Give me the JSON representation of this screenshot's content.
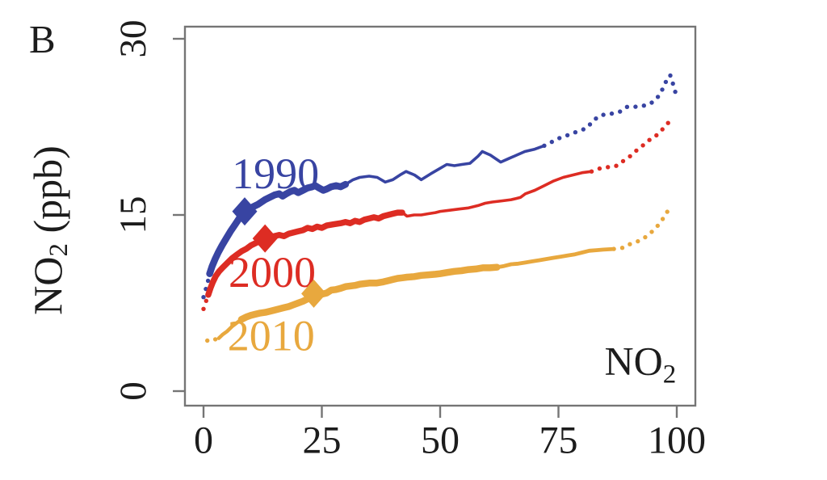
{
  "page": {
    "panel_label": "B",
    "y_axis_title": {
      "main": "NO",
      "sub": "2",
      "suffix": " (ppb)"
    }
  },
  "chart_data": {
    "type": "line",
    "title": "",
    "xlabel": "",
    "ylabel": "NO2 (ppb)",
    "panel_label": "B",
    "xlim": [
      0,
      100
    ],
    "ylim": [
      0,
      30
    ],
    "x_ticks": [
      0,
      25,
      50,
      75,
      100
    ],
    "y_ticks": [
      0,
      15,
      30
    ],
    "grid": false,
    "legend_position": "inline-labels",
    "colors": {
      "axis": "#757575",
      "text": "#1c1c1c"
    },
    "corner_label": {
      "main": "NO",
      "sub": "2",
      "pos": {
        "p": 92.3,
        "v": 2.3
      }
    },
    "series": [
      {
        "name": "1990",
        "color": "#3844a2",
        "label_pos": {
          "p": 15.2,
          "v": 18.6
        },
        "marker": {
          "p": 8.7,
          "v": 15.3
        },
        "segments": [
          {
            "from": 0,
            "to": 1.3,
            "style": "dots"
          },
          {
            "from": 1.3,
            "to": 30,
            "style": "line",
            "width": 8.5
          },
          {
            "from": 30,
            "to": 72,
            "style": "line",
            "width": 3.6
          },
          {
            "from": 72,
            "to": 100,
            "style": "dots"
          }
        ],
        "points": [
          [
            0,
            8.0
          ],
          [
            0.5,
            8.7
          ],
          [
            0.9,
            9.3
          ],
          [
            1.3,
            10.0
          ],
          [
            1.8,
            10.6
          ],
          [
            2.4,
            11.2
          ],
          [
            3.1,
            11.8
          ],
          [
            3.9,
            12.4
          ],
          [
            4.8,
            13.0
          ],
          [
            5.7,
            13.6
          ],
          [
            6.7,
            14.2
          ],
          [
            7.7,
            14.8
          ],
          [
            8.7,
            15.3
          ],
          [
            9.5,
            15.5
          ],
          [
            10.5,
            15.7
          ],
          [
            11.5,
            15.9
          ],
          [
            13,
            16.3
          ],
          [
            14,
            16.5
          ],
          [
            15,
            16.7
          ],
          [
            16,
            16.8
          ],
          [
            16.7,
            16.6
          ],
          [
            17.5,
            16.8
          ],
          [
            18.4,
            17.0
          ],
          [
            19.2,
            17.1
          ],
          [
            20,
            16.9
          ],
          [
            21,
            17.1
          ],
          [
            22,
            17.3
          ],
          [
            23,
            17.4
          ],
          [
            23.6,
            17.5
          ],
          [
            24.4,
            17.3
          ],
          [
            25.3,
            17.1
          ],
          [
            26,
            17.2
          ],
          [
            27,
            17.4
          ],
          [
            28,
            17.5
          ],
          [
            29,
            17.4
          ],
          [
            30,
            17.6
          ],
          [
            31.6,
            18.0
          ],
          [
            33,
            18.2
          ],
          [
            35,
            18.3
          ],
          [
            36.7,
            18.2
          ],
          [
            38.4,
            17.8
          ],
          [
            40,
            18.0
          ],
          [
            41.5,
            18.4
          ],
          [
            42.8,
            18.7
          ],
          [
            44.6,
            18.4
          ],
          [
            46,
            18.0
          ],
          [
            48,
            18.5
          ],
          [
            49.7,
            18.9
          ],
          [
            51.4,
            19.3
          ],
          [
            53,
            19.2
          ],
          [
            54.6,
            19.3
          ],
          [
            56.3,
            19.4
          ],
          [
            58,
            20.0
          ],
          [
            58.9,
            20.4
          ],
          [
            60.6,
            20.1
          ],
          [
            62.8,
            19.5
          ],
          [
            64.5,
            19.8
          ],
          [
            66.2,
            20.1
          ],
          [
            67.9,
            20.4
          ],
          [
            70,
            20.6
          ],
          [
            72,
            20.9
          ],
          [
            74,
            21.3
          ],
          [
            75.5,
            21.6
          ],
          [
            77,
            21.8
          ],
          [
            79,
            22.1
          ],
          [
            81,
            22.4
          ],
          [
            82.5,
            23.1
          ],
          [
            84,
            23.5
          ],
          [
            86,
            23.6
          ],
          [
            88,
            23.8
          ],
          [
            89.5,
            24.2
          ],
          [
            91,
            24.2
          ],
          [
            93,
            24.3
          ],
          [
            94.5,
            24.5
          ],
          [
            95.5,
            24.8
          ],
          [
            96.5,
            25.3
          ],
          [
            97.3,
            26.0
          ],
          [
            98,
            26.6
          ],
          [
            98.6,
            26.9
          ],
          [
            99.1,
            26.3
          ],
          [
            99.5,
            25.7
          ],
          [
            100,
            25.1
          ]
        ]
      },
      {
        "name": "2000",
        "color": "#dd2c23",
        "label_pos": {
          "p": 14.5,
          "v": 10.2
        },
        "marker": {
          "p": 13,
          "v": 13.0
        },
        "segments": [
          {
            "from": 0,
            "to": 1,
            "style": "dots"
          },
          {
            "from": 1,
            "to": 42,
            "style": "line",
            "width": 7.5
          },
          {
            "from": 42,
            "to": 82,
            "style": "line",
            "width": 3.6
          },
          {
            "from": 82,
            "to": 99,
            "style": "dots"
          }
        ],
        "points": [
          [
            0,
            7.0
          ],
          [
            0.5,
            7.6
          ],
          [
            1,
            8.2
          ],
          [
            1.5,
            8.8
          ],
          [
            2,
            9.3
          ],
          [
            2.6,
            9.8
          ],
          [
            3.3,
            10.2
          ],
          [
            4,
            10.5
          ],
          [
            5,
            10.9
          ],
          [
            6,
            11.3
          ],
          [
            7,
            11.6
          ],
          [
            8,
            11.9
          ],
          [
            9,
            12.1
          ],
          [
            10,
            12.4
          ],
          [
            11,
            12.6
          ],
          [
            12,
            12.8
          ],
          [
            13,
            13.0
          ],
          [
            14,
            13.1
          ],
          [
            15,
            13.2
          ],
          [
            16,
            13.3
          ],
          [
            17,
            13.2
          ],
          [
            18,
            13.4
          ],
          [
            19,
            13.5
          ],
          [
            20,
            13.6
          ],
          [
            21,
            13.7
          ],
          [
            22,
            13.9
          ],
          [
            23,
            13.8
          ],
          [
            24,
            14.0
          ],
          [
            25,
            13.9
          ],
          [
            26,
            14.1
          ],
          [
            27.5,
            14.2
          ],
          [
            29,
            14.3
          ],
          [
            30,
            14.4
          ],
          [
            31,
            14.3
          ],
          [
            32,
            14.5
          ],
          [
            33,
            14.4
          ],
          [
            34,
            14.6
          ],
          [
            35,
            14.7
          ],
          [
            36,
            14.8
          ],
          [
            37,
            14.7
          ],
          [
            38,
            14.9
          ],
          [
            39,
            15.0
          ],
          [
            40,
            15.1
          ],
          [
            41,
            15.2
          ],
          [
            42,
            15.2
          ],
          [
            43,
            14.9
          ],
          [
            44.5,
            15.0
          ],
          [
            46,
            15.0
          ],
          [
            47.5,
            15.1
          ],
          [
            49,
            15.2
          ],
          [
            50,
            15.3
          ],
          [
            52,
            15.4
          ],
          [
            54,
            15.5
          ],
          [
            56,
            15.6
          ],
          [
            58,
            15.8
          ],
          [
            59.5,
            16.0
          ],
          [
            61,
            16.1
          ],
          [
            63,
            16.2
          ],
          [
            65,
            16.3
          ],
          [
            66,
            16.4
          ],
          [
            67,
            16.5
          ],
          [
            68,
            16.8
          ],
          [
            70,
            17.1
          ],
          [
            72,
            17.5
          ],
          [
            74,
            17.9
          ],
          [
            76,
            18.2
          ],
          [
            78,
            18.4
          ],
          [
            80,
            18.6
          ],
          [
            82,
            18.7
          ],
          [
            84,
            19.0
          ],
          [
            86,
            19.1
          ],
          [
            87.5,
            19.2
          ],
          [
            89,
            19.7
          ],
          [
            90.5,
            20.1
          ],
          [
            92,
            20.7
          ],
          [
            93.5,
            21.1
          ],
          [
            94.5,
            21.5
          ],
          [
            95.5,
            21.7
          ],
          [
            96.5,
            22.1
          ],
          [
            97.5,
            22.5
          ],
          [
            98.3,
            22.9
          ],
          [
            99,
            23.2
          ]
        ]
      },
      {
        "name": "2010",
        "color": "#e8a83e",
        "label_pos": {
          "p": 14.3,
          "v": 4.8
        },
        "marker": {
          "p": 23.3,
          "v": 8.3
        },
        "segments": [
          {
            "from": 0.8,
            "to": 3.2,
            "style": "dots"
          },
          {
            "from": 3.2,
            "to": 8,
            "style": "line",
            "width": 4.5
          },
          {
            "from": 8,
            "to": 62,
            "style": "line",
            "width": 8.5
          },
          {
            "from": 62,
            "to": 86.7,
            "style": "line",
            "width": 4.8
          },
          {
            "from": 86.7,
            "to": 99,
            "style": "dots"
          }
        ],
        "points": [
          [
            0.8,
            4.3
          ],
          [
            1.6,
            4.25
          ],
          [
            2.4,
            4.4
          ],
          [
            3.2,
            4.5
          ],
          [
            4,
            4.8
          ],
          [
            5,
            5.1
          ],
          [
            6,
            5.5
          ],
          [
            7,
            5.8
          ],
          [
            8,
            6.1
          ],
          [
            9,
            6.3
          ],
          [
            10,
            6.45
          ],
          [
            11,
            6.55
          ],
          [
            12,
            6.65
          ],
          [
            13,
            6.7
          ],
          [
            14,
            6.8
          ],
          [
            15,
            6.9
          ],
          [
            16,
            7.0
          ],
          [
            17,
            7.1
          ],
          [
            18,
            7.2
          ],
          [
            19,
            7.35
          ],
          [
            20,
            7.5
          ],
          [
            21,
            7.65
          ],
          [
            22,
            7.85
          ],
          [
            23.3,
            8.3
          ],
          [
            24.5,
            8.2
          ],
          [
            26,
            8.35
          ],
          [
            27,
            8.6
          ],
          [
            28,
            8.65
          ],
          [
            29,
            8.75
          ],
          [
            30,
            8.9
          ],
          [
            31,
            8.95
          ],
          [
            32,
            9.0
          ],
          [
            33,
            9.1
          ],
          [
            34,
            9.15
          ],
          [
            35,
            9.2
          ],
          [
            36.5,
            9.2
          ],
          [
            38,
            9.3
          ],
          [
            39,
            9.4
          ],
          [
            40,
            9.5
          ],
          [
            41,
            9.6
          ],
          [
            42,
            9.65
          ],
          [
            43,
            9.7
          ],
          [
            44.5,
            9.75
          ],
          [
            46,
            9.85
          ],
          [
            47.5,
            9.9
          ],
          [
            49,
            9.95
          ],
          [
            50,
            10.0
          ],
          [
            51.5,
            10.1
          ],
          [
            53,
            10.2
          ],
          [
            54.5,
            10.25
          ],
          [
            56,
            10.35
          ],
          [
            57.5,
            10.4
          ],
          [
            59,
            10.5
          ],
          [
            60.5,
            10.5
          ],
          [
            62,
            10.55
          ],
          [
            63.5,
            10.65
          ],
          [
            65,
            10.8
          ],
          [
            66.5,
            10.85
          ],
          [
            68,
            10.95
          ],
          [
            69.5,
            11.05
          ],
          [
            71,
            11.15
          ],
          [
            72.5,
            11.25
          ],
          [
            74,
            11.35
          ],
          [
            75.5,
            11.45
          ],
          [
            77,
            11.55
          ],
          [
            78.5,
            11.65
          ],
          [
            80,
            11.8
          ],
          [
            81.5,
            11.95
          ],
          [
            83,
            12.0
          ],
          [
            84.5,
            12.05
          ],
          [
            86.7,
            12.1
          ],
          [
            88.5,
            12.2
          ],
          [
            90,
            12.5
          ],
          [
            91.5,
            12.7
          ],
          [
            93,
            13.0
          ],
          [
            94.3,
            13.4
          ],
          [
            95.6,
            13.9
          ],
          [
            96.8,
            14.5
          ],
          [
            97.7,
            15.1
          ],
          [
            98.4,
            15.5
          ],
          [
            99,
            15.8
          ]
        ]
      }
    ]
  }
}
